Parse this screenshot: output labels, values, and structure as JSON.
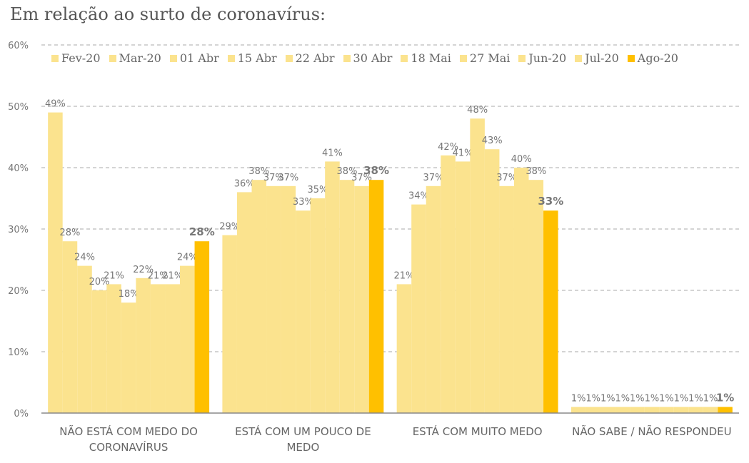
{
  "chart_data": {
    "type": "bar",
    "title": "Em relação ao surto de coronavírus:",
    "categories": [
      "NÃO ESTÁ COM MEDO DO CORONAVÍRUS",
      "ESTÁ COM UM POUCO DE MEDO",
      "ESTÁ COM MUITO MEDO",
      "NÃO SABE / NÃO RESPONDEU"
    ],
    "ylim": [
      0,
      60
    ],
    "yticks": [
      {
        "value": 0,
        "label": "0%"
      },
      {
        "value": 10,
        "label": "10%"
      },
      {
        "value": 20,
        "label": "20%"
      },
      {
        "value": 30,
        "label": "30%"
      },
      {
        "value": 40,
        "label": "40%"
      },
      {
        "value": 50,
        "label": "50%"
      },
      {
        "value": 60,
        "label": "60%"
      }
    ],
    "grid": true,
    "series": [
      {
        "name": "Fev-20",
        "color": "#fbe38e",
        "values": [
          49,
          29,
          21,
          1
        ],
        "value_labels": [
          "49%",
          "29%",
          "21%",
          "1%"
        ]
      },
      {
        "name": "Mar-20",
        "color": "#fbe38e",
        "values": [
          28,
          36,
          34,
          1
        ],
        "value_labels": [
          "28%",
          "36%",
          "34%",
          "1%"
        ]
      },
      {
        "name": "01 Abr",
        "color": "#fbe38e",
        "values": [
          24,
          38,
          37,
          1
        ],
        "value_labels": [
          "24%",
          "38%",
          "37%",
          "1%"
        ]
      },
      {
        "name": "15 Abr",
        "color": "#fbe38e",
        "values": [
          20,
          37,
          42,
          1
        ],
        "value_labels": [
          "20%",
          "37%",
          "42%",
          "1%"
        ]
      },
      {
        "name": "22 Abr",
        "color": "#fbe38e",
        "values": [
          21,
          37,
          41,
          1
        ],
        "value_labels": [
          "21%",
          "37%",
          "41%",
          "1%"
        ]
      },
      {
        "name": "30 Abr",
        "color": "#fbe38e",
        "values": [
          18,
          33,
          48,
          1
        ],
        "value_labels": [
          "18%",
          "33%",
          "48%",
          "1%"
        ]
      },
      {
        "name": "18 Mai",
        "color": "#fbe38e",
        "values": [
          22,
          35,
          43,
          1
        ],
        "value_labels": [
          "22%",
          "35%",
          "43%",
          "1%"
        ]
      },
      {
        "name": "27 Mai",
        "color": "#fbe38e",
        "values": [
          21,
          41,
          37,
          1
        ],
        "value_labels": [
          "21%",
          "41%",
          "37%",
          "1%"
        ]
      },
      {
        "name": "Jun-20",
        "color": "#fbe38e",
        "values": [
          21,
          38,
          40,
          1
        ],
        "value_labels": [
          "21%",
          "38%",
          "40%",
          "1%"
        ]
      },
      {
        "name": "Jul-20",
        "color": "#fbe38e",
        "values": [
          24,
          37,
          38,
          1
        ],
        "value_labels": [
          "24%",
          "37%",
          "38%",
          "1%"
        ]
      },
      {
        "name": "Ago-20",
        "color": "#ffc000",
        "values": [
          28,
          38,
          33,
          1
        ],
        "value_labels": [
          "28%",
          "38%",
          "33%",
          "1%"
        ]
      }
    ]
  }
}
